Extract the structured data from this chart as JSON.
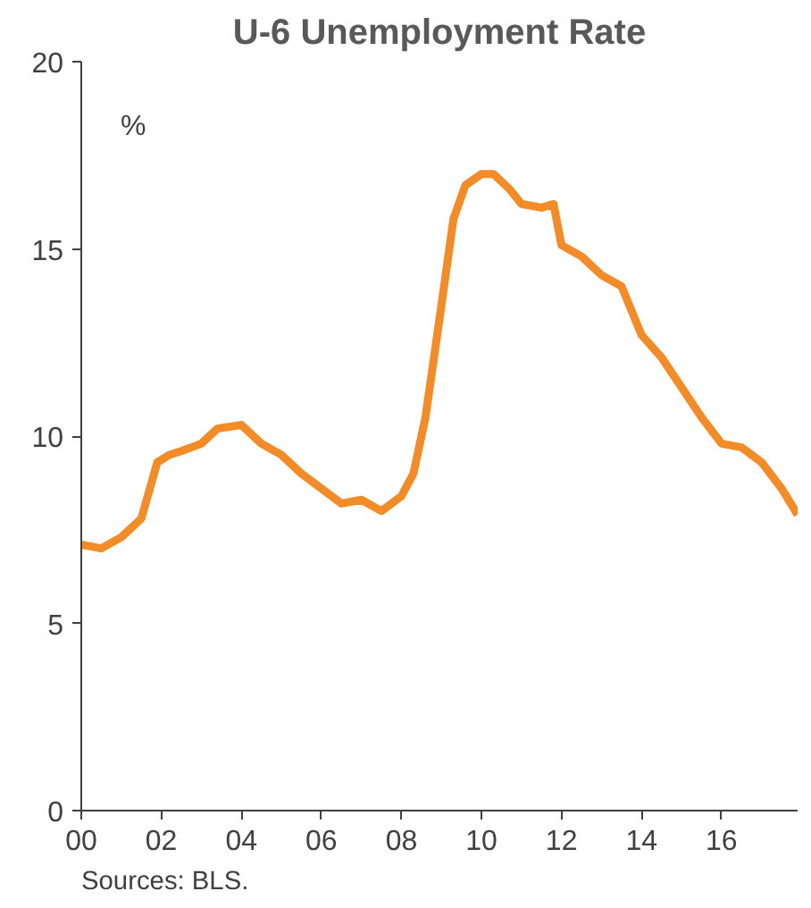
{
  "chart_data": {
    "type": "line",
    "title": "U-6 Unemployment Rate",
    "ylabel": "%",
    "annotations": [
      "Sources: BLS."
    ],
    "x": [
      2000.0,
      2000.5,
      2001.0,
      2001.5,
      2001.9,
      2002.2,
      2002.5,
      2003.0,
      2003.4,
      2004.0,
      2004.5,
      2005.0,
      2005.5,
      2006.0,
      2006.5,
      2007.0,
      2007.5,
      2008.0,
      2008.3,
      2008.6,
      2009.0,
      2009.3,
      2009.6,
      2010.0,
      2010.3,
      2010.7,
      2011.0,
      2011.5,
      2011.8,
      2012.0,
      2012.5,
      2013.0,
      2013.5,
      2014.0,
      2014.5,
      2015.0,
      2015.5,
      2016.0,
      2016.5,
      2017.0,
      2017.5,
      2017.9
    ],
    "series": [
      {
        "color": "#f28c28",
        "values": [
          7.1,
          7.0,
          7.3,
          7.8,
          9.3,
          9.5,
          9.6,
          9.8,
          10.2,
          10.3,
          9.8,
          9.5,
          9.0,
          8.6,
          8.2,
          8.3,
          8.0,
          8.4,
          9.0,
          10.5,
          13.5,
          15.8,
          16.7,
          17.0,
          17.0,
          16.6,
          16.2,
          16.1,
          16.2,
          15.1,
          14.8,
          14.3,
          14.0,
          12.7,
          12.1,
          11.3,
          10.5,
          9.8,
          9.7,
          9.3,
          8.6,
          7.9
        ]
      }
    ],
    "xlim": [
      2000,
      2017.9
    ],
    "xticks": [
      {
        "value": 2000,
        "label": "00"
      },
      {
        "value": 2002,
        "label": "02"
      },
      {
        "value": 2004,
        "label": "04"
      },
      {
        "value": 2006,
        "label": "06"
      },
      {
        "value": 2008,
        "label": "08"
      },
      {
        "value": 2010,
        "label": "10"
      },
      {
        "value": 2012,
        "label": "12"
      },
      {
        "value": 2014,
        "label": "14"
      },
      {
        "value": 2016,
        "label": "16"
      }
    ],
    "ylim": [
      0,
      20
    ],
    "yticks": [
      0,
      5,
      10,
      15,
      20
    ],
    "grid": false,
    "line_style": "solid",
    "marker": "none"
  }
}
